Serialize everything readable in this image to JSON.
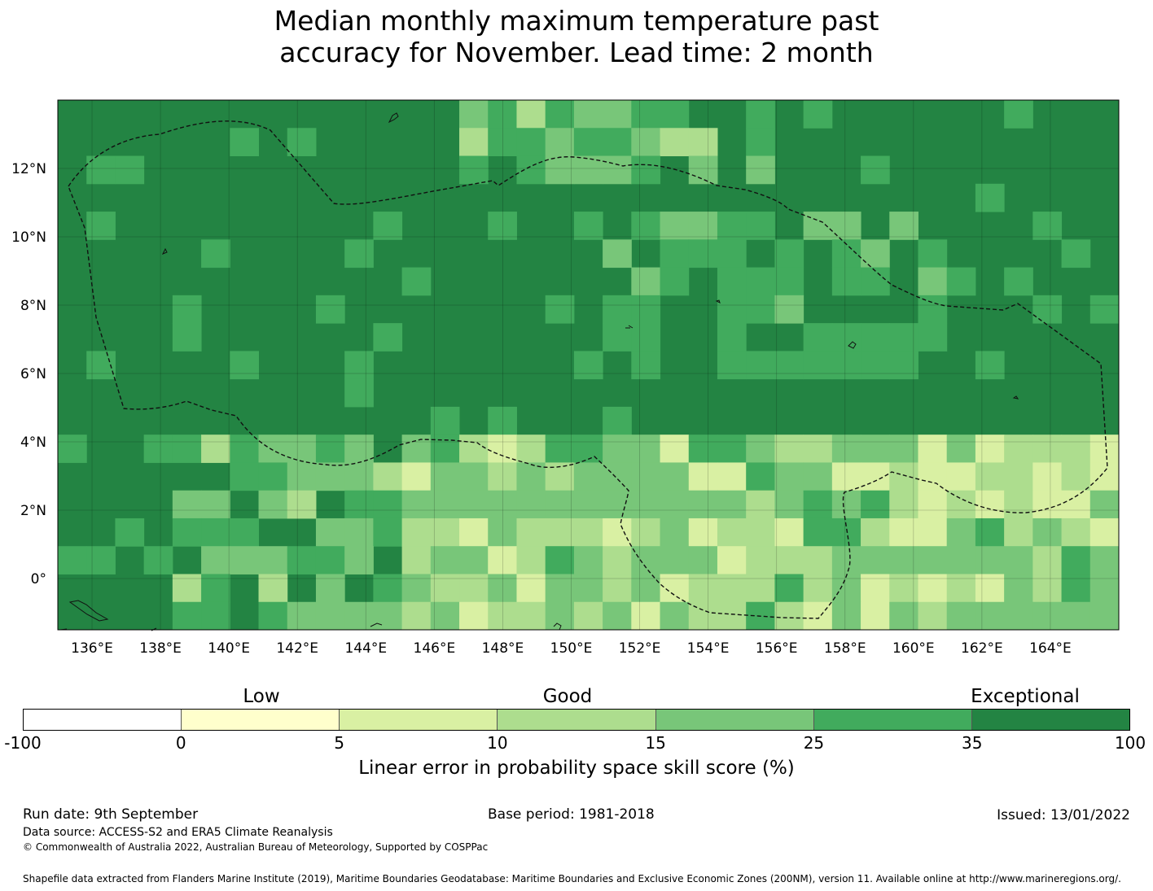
{
  "title": {
    "line1": "Median monthly maximum temperature past",
    "line2": "accuracy for November. Lead time: 2 month"
  },
  "map": {
    "lon_labels": [
      "136°E",
      "138°E",
      "140°E",
      "142°E",
      "144°E",
      "146°E",
      "148°E",
      "150°E",
      "152°E",
      "154°E",
      "156°E",
      "158°E",
      "160°E",
      "162°E",
      "164°E"
    ],
    "lat_labels": [
      "12°N",
      "10°N",
      "8°N",
      "6°N",
      "4°N",
      "2°N",
      "0°"
    ],
    "lon_range": [
      135,
      166
    ],
    "lat_range": [
      -1.5,
      14
    ],
    "grid": true,
    "cells_description": "Gridded skill-score cells coloured by category",
    "palette": [
      "#ffffcc",
      "#d9f0a3",
      "#addd8e",
      "#78c679",
      "#41ab5d",
      "#238443"
    ]
  },
  "chart_data": {
    "type": "heatmap",
    "title": "Median monthly maximum temperature past accuracy for November. Lead time: 2 month",
    "x_ticks": [
      "136°E",
      "138°E",
      "140°E",
      "142°E",
      "144°E",
      "146°E",
      "148°E",
      "150°E",
      "152°E",
      "154°E",
      "156°E",
      "158°E",
      "160°E",
      "162°E",
      "164°E"
    ],
    "y_ticks": [
      "12°N",
      "10°N",
      "8°N",
      "6°N",
      "4°N",
      "2°N",
      "0°"
    ]
  },
  "colorbar": {
    "categories": [
      "Low",
      "Good",
      "Exceptional"
    ],
    "ticks": [
      "-100",
      "0",
      "5",
      "10",
      "15",
      "25",
      "35",
      "100"
    ],
    "colors": [
      "#ffffff",
      "#ffffcc",
      "#d9f0a3",
      "#addd8e",
      "#78c679",
      "#41ab5d",
      "#238443"
    ],
    "label": "Linear error in probability space skill score (%)"
  },
  "footer": {
    "run_date": "Run date: 9th September",
    "base_period": "Base period: 1981-2018",
    "issued": "Issued: 13/01/2022",
    "data_source": "Data source: ACCESS-S2 and ERA5 Climate Reanalysis",
    "copyright": "© Commonwealth of Australia 2022, Australian Bureau of Meteorology, Supported by COSPPac",
    "shapefile": "Shapefile data extracted from Flanders Marine Institute (2019), Maritime Boundaries Geodatabase: Maritime Boundaries and Exclusive Economic Zones (200NM), version 11. Available online at http://www.marineregions.org/."
  }
}
